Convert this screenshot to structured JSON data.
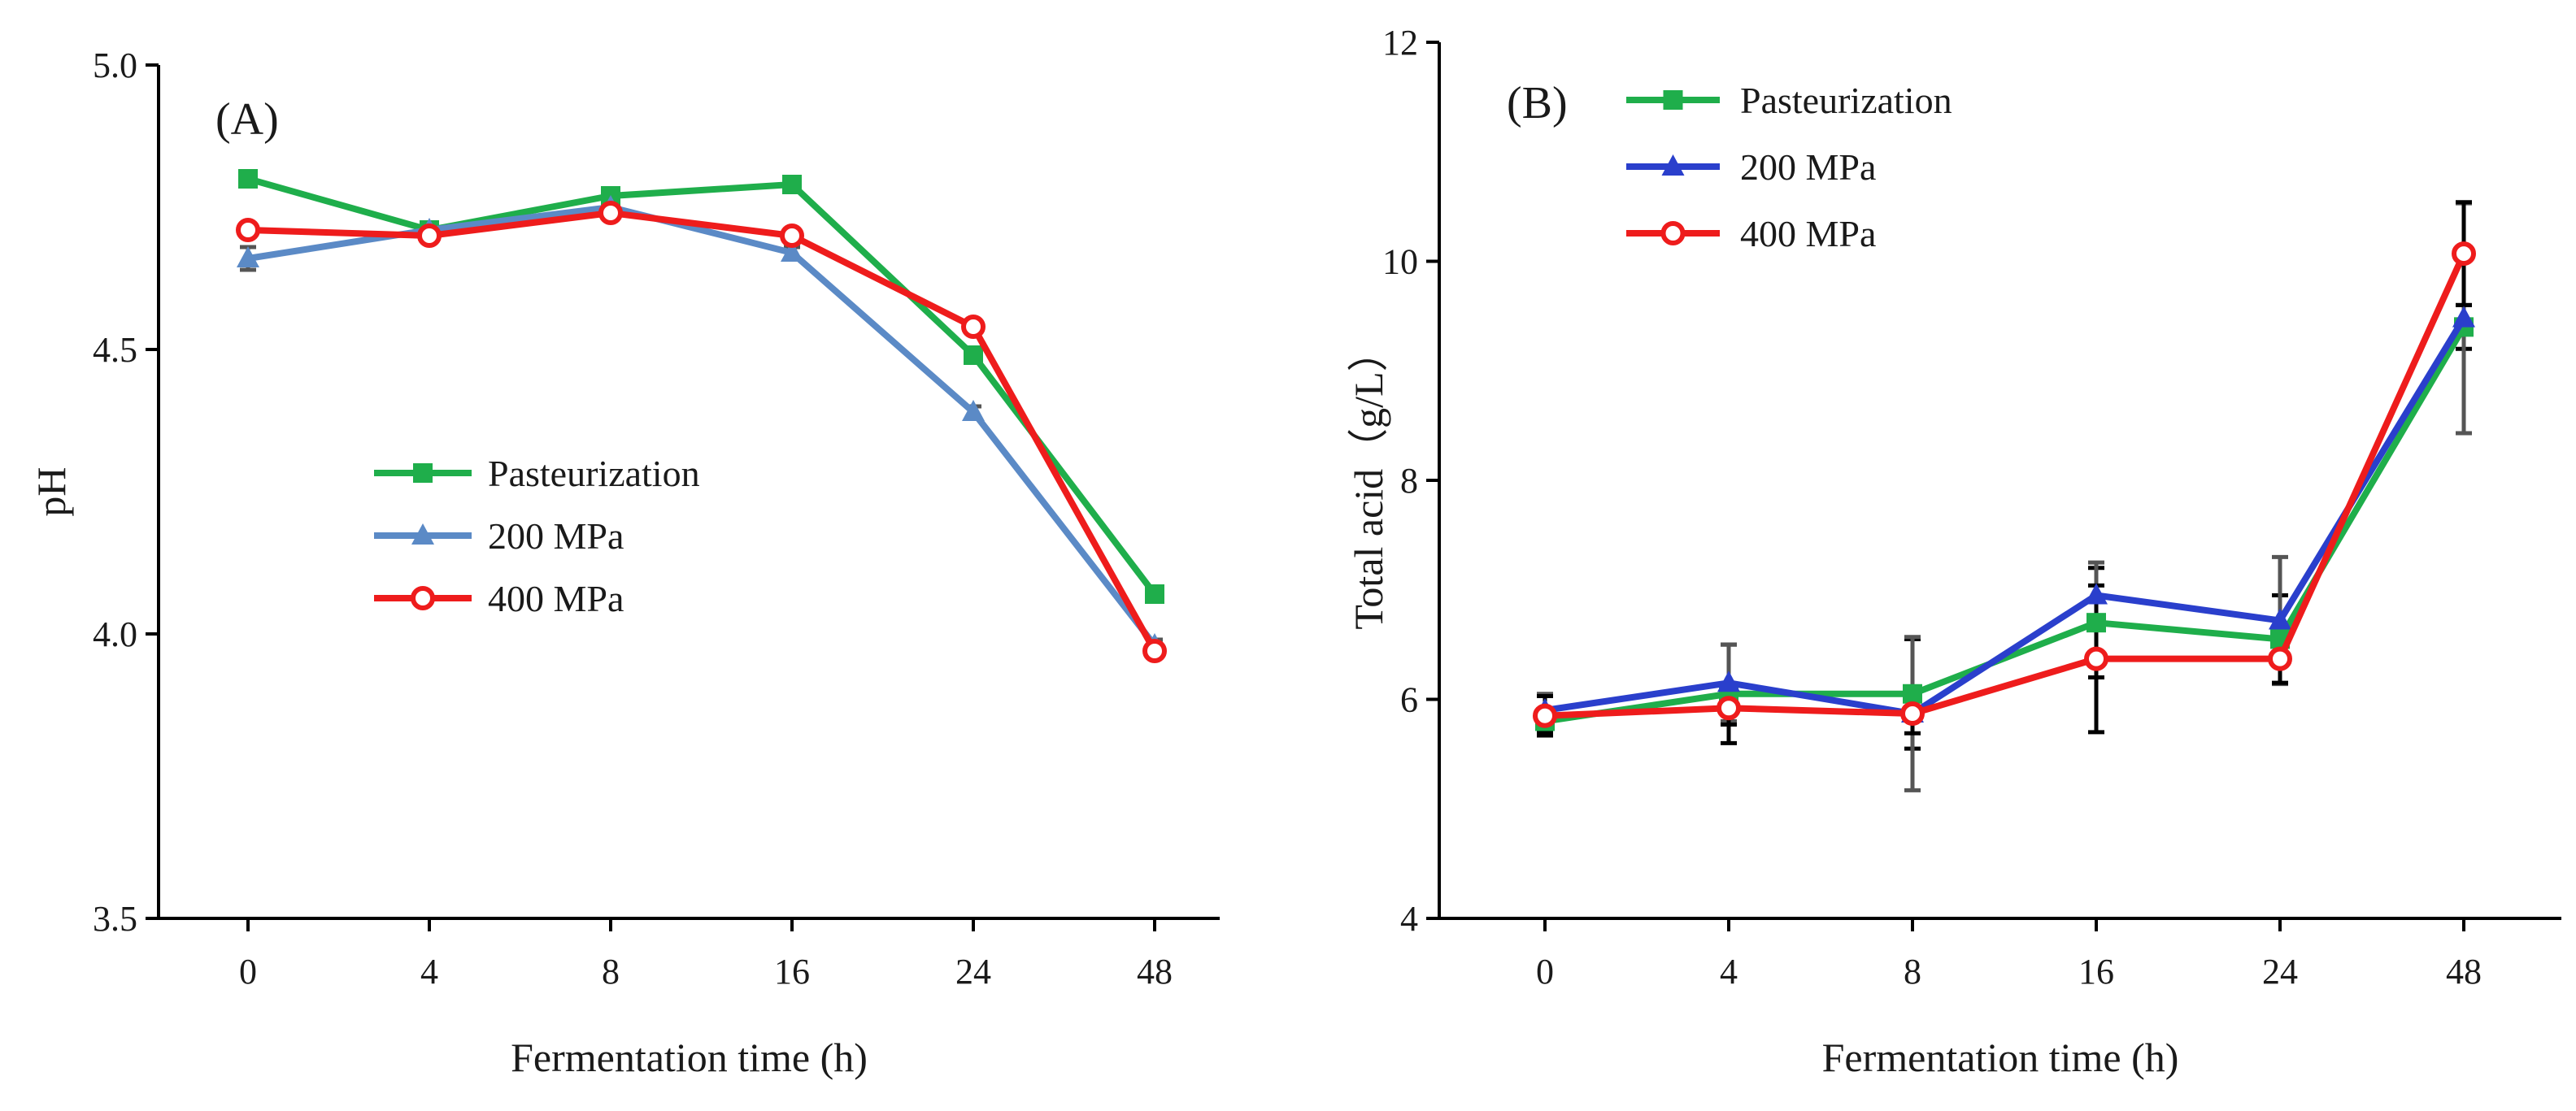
{
  "chart_data": [
    {
      "type": "line",
      "panel_label": "(A)",
      "title": "",
      "xlabel": "Fermentation time (h)",
      "ylabel": "pH",
      "categories": [
        "0",
        "4",
        "8",
        "16",
        "24",
        "48"
      ],
      "ylim": [
        3.5,
        5.0
      ],
      "yticks": [
        "3.5",
        "4.0",
        "4.5",
        "5.0"
      ],
      "grid": false,
      "legend_position": "center",
      "series": [
        {
          "name": "Pasteurization",
          "marker": "square",
          "color": "#1fae4b",
          "values": [
            4.8,
            4.71,
            4.77,
            4.79,
            4.49,
            4.07
          ],
          "errors": [
            0.01,
            0.01,
            0.01,
            0.01,
            0.01,
            0.01
          ]
        },
        {
          "name": "200 MPa",
          "marker": "triangle",
          "color": "#5b8ac6",
          "values": [
            4.66,
            4.71,
            4.75,
            4.67,
            4.39,
            3.98
          ],
          "errors": [
            0.02,
            0.01,
            0.01,
            0.01,
            0.01,
            0.01
          ]
        },
        {
          "name": "400 MPa",
          "marker": "circle",
          "color": "#ee1c1c",
          "values": [
            4.71,
            4.7,
            4.74,
            4.7,
            4.54,
            3.97
          ],
          "errors": [
            0.01,
            0.01,
            0.01,
            0.01,
            0.01,
            0.01
          ]
        }
      ]
    },
    {
      "type": "line",
      "panel_label": "(B)",
      "title": "",
      "xlabel": "Fermentation time (h)",
      "ylabel": "Total acid（g/L）",
      "categories": [
        "0",
        "4",
        "8",
        "16",
        "24",
        "48"
      ],
      "ylim": [
        4,
        12
      ],
      "yticks": [
        "4",
        "6",
        "8",
        "10",
        "12"
      ],
      "grid": false,
      "legend_position": "top-left",
      "series": [
        {
          "name": "Pasteurization",
          "marker": "square",
          "color": "#1fae4b",
          "values": [
            5.8,
            6.05,
            6.05,
            6.7,
            6.55,
            9.4
          ],
          "errors": [
            0.1,
            0.45,
            0.5,
            0.5,
            0.4,
            0.2
          ]
        },
        {
          "name": "200 MPa",
          "marker": "triangle",
          "color": "#2a3fcc",
          "values": [
            5.9,
            6.15,
            5.87,
            6.95,
            6.72,
            9.48
          ],
          "errors": [
            0.15,
            0.35,
            0.7,
            0.3,
            0.58,
            1.05
          ]
        },
        {
          "name": "400 MPa",
          "marker": "circle",
          "color": "#ee1c1c",
          "values": [
            5.85,
            5.92,
            5.87,
            6.37,
            6.37,
            10.07
          ],
          "errors": [
            0.18,
            0.15,
            0.18,
            0.67,
            0.22,
            0.47
          ]
        }
      ]
    }
  ]
}
